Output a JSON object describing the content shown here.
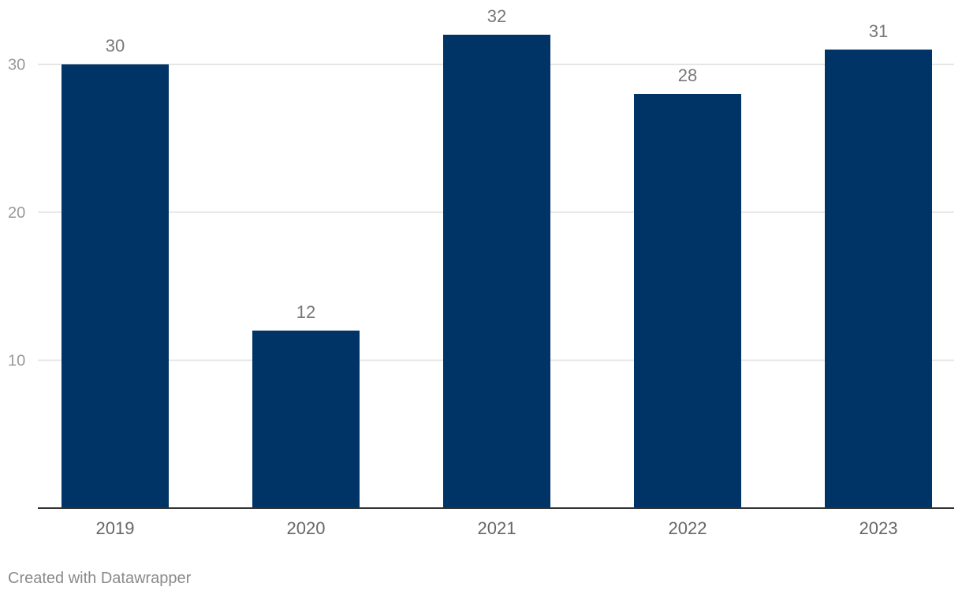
{
  "chart_data": {
    "type": "bar",
    "title": "",
    "xlabel": "",
    "ylabel": "",
    "categories": [
      "2019",
      "2020",
      "2021",
      "2022",
      "2023"
    ],
    "values": [
      30,
      12,
      32,
      28,
      31
    ],
    "data_labels": [
      "30",
      "12",
      "32",
      "28",
      "31"
    ],
    "y_ticks": [
      10,
      20,
      30
    ],
    "y_tick_labels": [
      "10",
      "20",
      "30"
    ],
    "ylim": [
      0,
      32
    ],
    "grid": true,
    "legend": "none"
  },
  "colors": {
    "bar": "#003366",
    "grid": "#e0e0e0",
    "axis": "#333333",
    "tick_label": "#999999",
    "category_label": "#666666",
    "value_label": "#777777"
  },
  "footer": {
    "credit": "Created with Datawrapper"
  }
}
